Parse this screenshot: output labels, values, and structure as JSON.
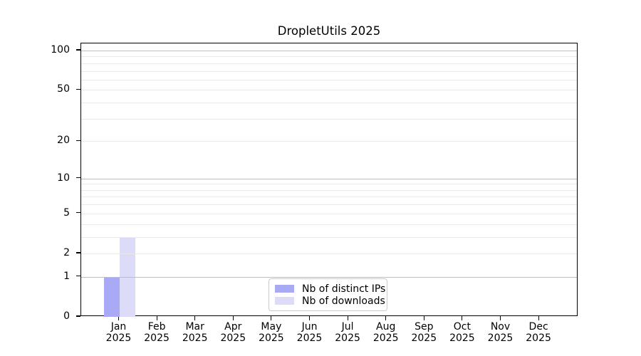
{
  "chart_data": {
    "type": "bar",
    "title": "DropletUtils 2025",
    "categories": [
      "Jan",
      "Feb",
      "Mar",
      "Apr",
      "May",
      "Jun",
      "Jul",
      "Aug",
      "Sep",
      "Oct",
      "Nov",
      "Dec"
    ],
    "year_label": "2025",
    "series": [
      {
        "name": "Nb of distinct IPs",
        "color": "#a9a9f5",
        "values": [
          1,
          0,
          0,
          0,
          0,
          0,
          0,
          0,
          0,
          0,
          0,
          0
        ]
      },
      {
        "name": "Nb of downloads",
        "color": "#dcdcf9",
        "values": [
          3,
          0,
          0,
          0,
          0,
          0,
          0,
          0,
          0,
          0,
          0,
          0
        ]
      }
    ],
    "y_axis": {
      "scale": "log1p",
      "ticks": [
        0,
        1,
        2,
        5,
        10,
        20,
        50,
        100
      ],
      "range_max": 110
    },
    "gridlines": {
      "major": [
        1,
        10,
        100
      ],
      "minor": [
        2,
        3,
        4,
        5,
        6,
        7,
        8,
        9,
        20,
        30,
        40,
        50,
        60,
        70,
        80,
        90
      ],
      "major_color": "#bdbdbd",
      "minor_color": "#e9e9e9"
    },
    "legend": {
      "position": "bottom-center"
    },
    "colors": {
      "axis": "#000000",
      "text": "#000000",
      "background": "#ffffff"
    }
  }
}
